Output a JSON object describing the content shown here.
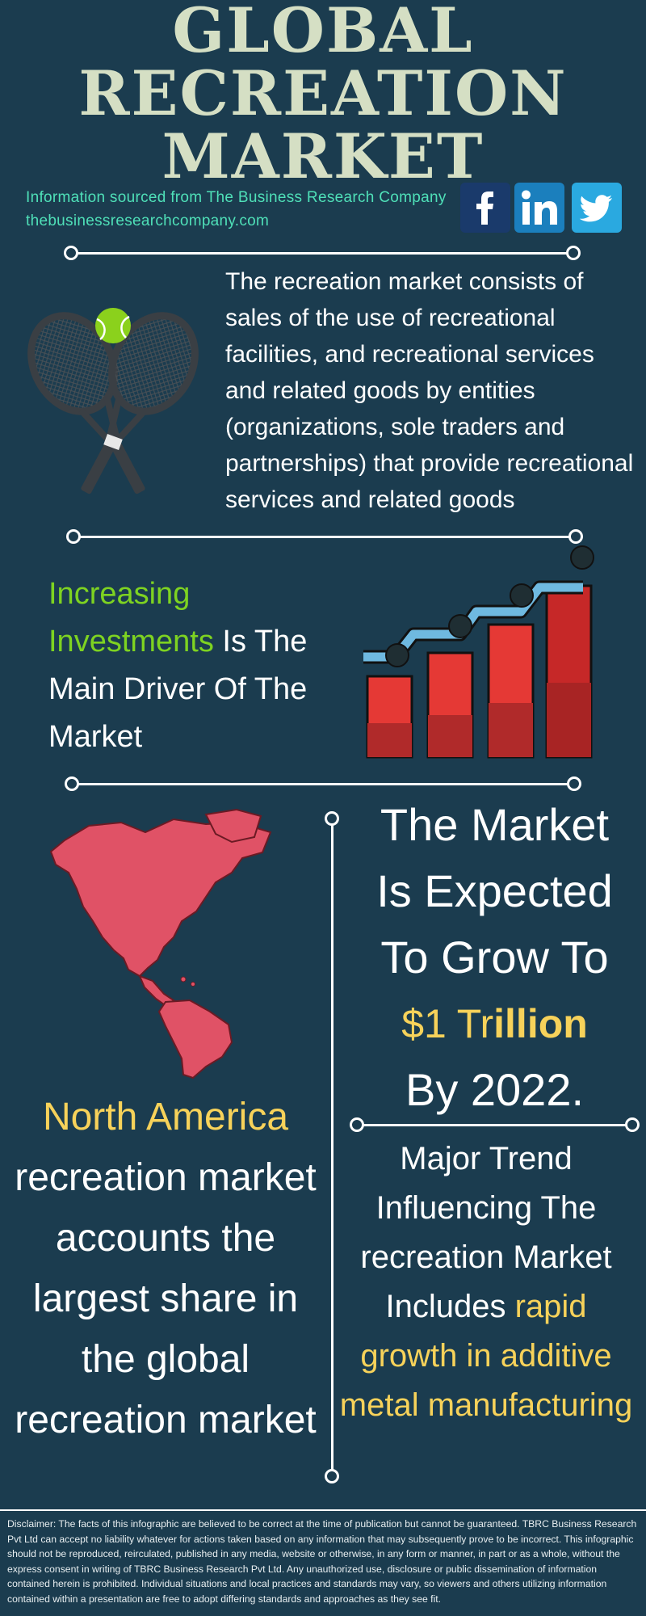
{
  "title": {
    "line1": "GLOBAL",
    "line2": "RECREATION",
    "line3": "MARKET"
  },
  "source": {
    "info": "Information sourced from The Business Research Company",
    "website": "thebusinessresearchcompany.com"
  },
  "social": [
    {
      "name": "facebook-icon",
      "color": "#1a3a6b"
    },
    {
      "name": "linkedin-icon",
      "color": "#1b7fbd"
    },
    {
      "name": "twitter-icon",
      "color": "#2aa9e0"
    }
  ],
  "description": "The recreation market consists of sales of the use of recreational facilities, and recreational services and related goods by entities (organizations, sole traders and partnerships) that provide recreational services and related goods",
  "driver": {
    "highlight": "Increasing Investments",
    "rest": " Is The Main Driver Of The Market"
  },
  "growth": {
    "line1": "The Market",
    "line2": "Is Expected",
    "line3": "To Grow To",
    "value_prefix": "$1 Tr",
    "value_suffix": "illion",
    "line5": "By 2022."
  },
  "region": {
    "highlight": "North America",
    "rest": "recreation market accounts the largest share in the global recreation market"
  },
  "trend": {
    "text": "Major Trend Influencing The recreation Market Includes ",
    "highlight": "rapid growth in additive metal manufacturing"
  },
  "disclaimer": "Disclaimer: The facts of this infographic are believed to be correct at the time of publication but cannot be guaranteed. TBRC Business Research Pvt Ltd can accept no liability whatever for actions taken based on any information that may subsequently prove to be incorrect. This infographic should not be reproduced, reirculated, published in any media, website or otherwise, in any form or manner, in part or as a whole, without the express consent in writing of TBRC Business Research Pvt Ltd. Any unauthorized use, disclosure or public dissemination of information contained herein is prohibited. Individual situations and local practices and standards may vary, so viewers and others utilizing information contained within a presentation are free to adopt differing standards and approaches as they see fit.",
  "colors": {
    "background": "#1b3c4f",
    "title": "#d5dfc4",
    "source": "#4fe0b8",
    "green": "#7ed321",
    "yellow": "#f7d25a",
    "bar_red": "#e53935",
    "map_pink": "#e05266"
  }
}
